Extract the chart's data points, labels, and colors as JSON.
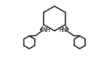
{
  "bg_color": "#ffffff",
  "line_color": "#000000",
  "line_width": 1.1,
  "fig_width": 1.6,
  "fig_height": 1.06,
  "dpi": 100,
  "nh_left_text": "NH",
  "nh_right_text": "HN",
  "font_size": 5.5
}
